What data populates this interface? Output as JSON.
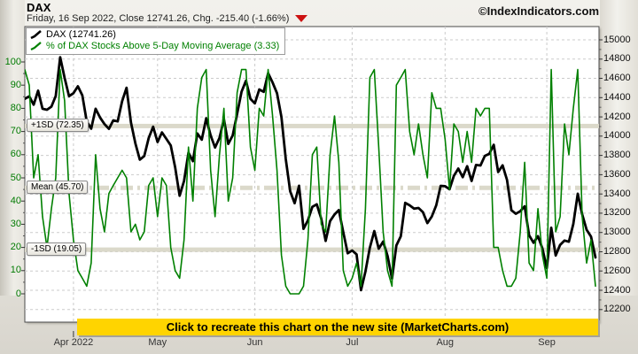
{
  "header": {
    "title": "DAX",
    "subtitle": "Friday, 16 Sep 2022, Close 12741.26, Chg. -215.40 (-1.66%)",
    "change_direction": "down",
    "change_color": "#cc1111",
    "watermark": "©IndexIndicators.com"
  },
  "legend": [
    {
      "label": "DAX (12741.26)",
      "color": "#000000"
    },
    {
      "label": "% of DAX Stocks Above 5-Day Moving Average (3.33)",
      "color": "#008000"
    }
  ],
  "banner": {
    "text": "Click to recreate this chart on the new site (MarketCharts.com)",
    "bg": "#ffd400"
  },
  "chart_data": {
    "type": "line",
    "title": "DAX vs % of DAX Stocks Above 5-Day Moving Average",
    "x_axis": {
      "tick_labels": [
        "Apr 2022",
        "May",
        "Jun",
        "Jul",
        "Aug",
        "Sep"
      ],
      "tick_day_index": [
        11,
        30,
        52,
        74,
        95,
        118
      ]
    },
    "left_axis": {
      "color": "#007a00",
      "range": [
        0,
        100
      ],
      "ticks": [
        0,
        10,
        20,
        30,
        40,
        50,
        60,
        70,
        80,
        90,
        100
      ]
    },
    "right_axis": {
      "color": "#111111",
      "ticks": [
        12200,
        12400,
        12600,
        12800,
        13000,
        13200,
        13400,
        13600,
        13800,
        14000,
        14200,
        14400,
        14600,
        14800,
        15000
      ]
    },
    "reference_lines": [
      {
        "label": "+1SD (72.35)",
        "value": 72.35,
        "style": "solid"
      },
      {
        "label": "Mean (45.70)",
        "value": 45.7,
        "style": "dashdot"
      },
      {
        "label": "-1SD (19.05)",
        "value": 19.05,
        "style": "solid"
      }
    ],
    "grid": true,
    "legend_position": "top-left",
    "series": [
      {
        "name": "DAX",
        "axis": "right",
        "color": "#000000",
        "last_value": 12741.26,
        "values": [
          14388,
          14413,
          14327,
          14473,
          14284,
          14274,
          14306,
          14417,
          14820,
          14606,
          14415,
          14446,
          14518,
          14424,
          14152,
          14078,
          14284,
          14193,
          14125,
          14076,
          14164,
          14153,
          14362,
          14502,
          14142,
          13924,
          13756,
          13794,
          13980,
          14098,
          13939,
          14039,
          13971,
          13903,
          13674,
          13381,
          13535,
          13829,
          13740,
          14028,
          13964,
          14186,
          14008,
          13882,
          13982,
          14175,
          13920,
          14008,
          14231,
          14462,
          14576,
          14388,
          14340,
          14485,
          14460,
          14654,
          14557,
          14446,
          14199,
          13762,
          13427,
          13304,
          13485,
          13038,
          13126,
          13266,
          13292,
          13144,
          12913,
          13118,
          13186,
          13232,
          13003,
          12784,
          12813,
          12773,
          12401,
          12595,
          12843,
          13015,
          12832,
          12905,
          12756,
          12520,
          12865,
          12960,
          13308,
          13282,
          13247,
          13254,
          13210,
          13097,
          13166,
          13282,
          13484,
          13480,
          13449,
          13588,
          13663,
          13574,
          13688,
          13535,
          13701,
          13695,
          13796,
          13817,
          13910,
          13627,
          13697,
          13545,
          13231,
          13194,
          13220,
          13272,
          12971,
          12893,
          12961,
          12835,
          12630,
          13050,
          12761,
          12871,
          12916,
          12904,
          13088,
          13402,
          13189,
          13028,
          12957,
          12741.26
        ]
      },
      {
        "name": "% of DAX Stocks Above 5-Day Moving Average",
        "axis": "left",
        "color": "#008000",
        "last_value": 3.33,
        "values": [
          96.7,
          90,
          50,
          60,
          33.3,
          20,
          36.7,
          50,
          96.7,
          83.3,
          43.3,
          23.3,
          10,
          6.7,
          3.3,
          13.3,
          60,
          36.7,
          26.7,
          43.3,
          46.7,
          50,
          53.3,
          50,
          26.7,
          30,
          23.3,
          26.7,
          46.7,
          50,
          33.3,
          50,
          46.7,
          20,
          10,
          6.7,
          23.3,
          63.3,
          40,
          80,
          93.3,
          96.7,
          53.3,
          33.3,
          60,
          80,
          40,
          50,
          86.7,
          96.7,
          96.7,
          63.3,
          53.3,
          80,
          76.7,
          96.7,
          76.7,
          53.3,
          16.7,
          3.3,
          0,
          0,
          0,
          3.3,
          23.3,
          60,
          63.3,
          30,
          26.7,
          60,
          76.7,
          56.7,
          10,
          3.3,
          6.7,
          13.3,
          3.3,
          36.7,
          93.3,
          96.7,
          63.3,
          26.7,
          10,
          3.3,
          90,
          93.3,
          96.7,
          70,
          60,
          73.3,
          60,
          50,
          86.7,
          80,
          80,
          66.7,
          45,
          73.3,
          70,
          56.7,
          70,
          56.7,
          80,
          76.7,
          80,
          80,
          20,
          20,
          10,
          3.3,
          3.3,
          6.7,
          26.7,
          56.7,
          13.3,
          10,
          36.7,
          16.7,
          6.7,
          96.7,
          26.7,
          33.3,
          73.3,
          60,
          80,
          96.7,
          33.3,
          13.3,
          23.3,
          3.33
        ]
      }
    ]
  }
}
